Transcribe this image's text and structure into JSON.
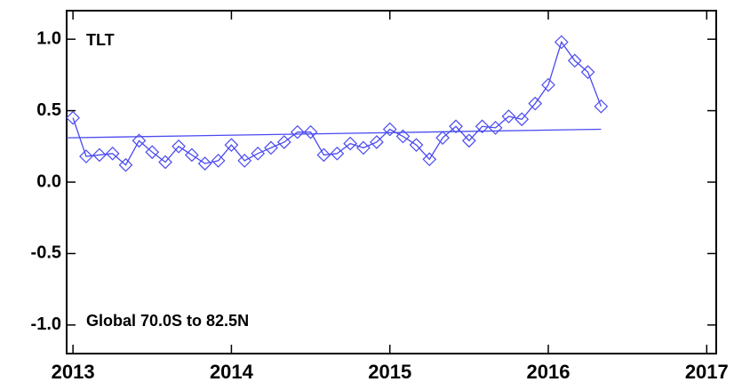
{
  "chart_data": {
    "type": "line",
    "annotations": [
      "TLT",
      "Global  70.0S to  82.5N"
    ],
    "xlim": [
      2012.96,
      2017.06
    ],
    "xticks": [
      2013,
      2014,
      2015,
      2016,
      2017
    ],
    "ylim": [
      -1.2,
      1.2
    ],
    "yticks": [
      {
        "value": -1.0,
        "label": "-1.0"
      },
      {
        "value": -0.5,
        "label": "-0.5"
      },
      {
        "value": 0.0,
        "label": "0.0"
      },
      {
        "value": 0.5,
        "label": "0.5"
      },
      {
        "value": 1.0,
        "label": "1.0"
      }
    ],
    "series": [
      {
        "color": "#4a4af0",
        "markers": "diamond",
        "x": [
          2013.0,
          2013.083,
          2013.167,
          2013.25,
          2013.333,
          2013.417,
          2013.5,
          2013.583,
          2013.667,
          2013.75,
          2013.833,
          2013.917,
          2014.0,
          2014.083,
          2014.167,
          2014.25,
          2014.333,
          2014.417,
          2014.5,
          2014.583,
          2014.667,
          2014.75,
          2014.833,
          2014.917,
          2015.0,
          2015.083,
          2015.167,
          2015.25,
          2015.333,
          2015.417,
          2015.5,
          2015.583,
          2015.667,
          2015.75,
          2015.833,
          2015.917,
          2016.0,
          2016.083,
          2016.167,
          2016.25,
          2016.333
        ],
        "values": [
          0.45,
          0.18,
          0.19,
          0.2,
          0.12,
          0.29,
          0.21,
          0.14,
          0.25,
          0.19,
          0.13,
          0.15,
          0.26,
          0.15,
          0.2,
          0.24,
          0.28,
          0.35,
          0.35,
          0.19,
          0.2,
          0.27,
          0.24,
          0.28,
          0.37,
          0.32,
          0.26,
          0.16,
          0.31,
          0.39,
          0.29,
          0.39,
          0.38,
          0.46,
          0.44,
          0.55,
          0.68,
          0.98,
          0.85,
          0.77,
          0.53
        ]
      },
      {
        "color": "#4a4af0",
        "markers": "none",
        "x": [
          2012.96,
          2016.333
        ],
        "values": [
          0.31,
          0.37
        ]
      }
    ]
  }
}
